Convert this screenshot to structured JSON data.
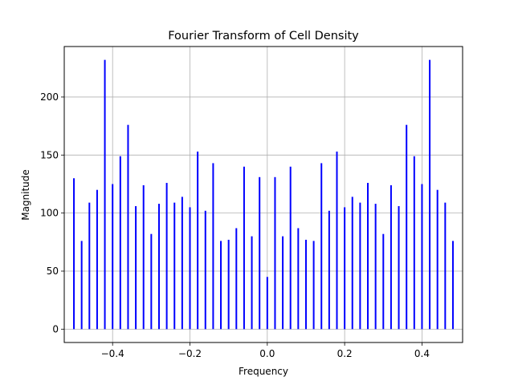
{
  "chart_data": {
    "type": "bar",
    "title": "Fourier Transform of Cell Density",
    "xlabel": "Frequency",
    "ylabel": "Magnitude",
    "xlim": [
      -0.525,
      0.505
    ],
    "ylim": [
      -11.5,
      243.5
    ],
    "x_ticks": [
      -0.4,
      -0.2,
      0.0,
      0.2,
      0.4
    ],
    "x_tick_labels": [
      "−0.4",
      "−0.2",
      "0.0",
      "0.2",
      "0.4"
    ],
    "y_ticks": [
      0,
      50,
      100,
      150,
      200
    ],
    "y_tick_labels": [
      "0",
      "50",
      "100",
      "150",
      "200"
    ],
    "grid": true,
    "bar_color": "#0000ff",
    "x": [
      -0.5,
      -0.48,
      -0.46,
      -0.44,
      -0.42,
      -0.4,
      -0.38,
      -0.36,
      -0.34,
      -0.32,
      -0.3,
      -0.28,
      -0.26,
      -0.24,
      -0.22,
      -0.2,
      -0.18,
      -0.16,
      -0.14,
      -0.12,
      -0.1,
      -0.08,
      -0.06,
      -0.04,
      -0.02,
      0.0,
      0.02,
      0.04,
      0.06,
      0.08,
      0.1,
      0.12,
      0.14,
      0.16,
      0.18,
      0.2,
      0.22,
      0.24,
      0.26,
      0.28,
      0.3,
      0.32,
      0.34,
      0.36,
      0.38,
      0.4,
      0.42,
      0.44,
      0.46,
      0.48
    ],
    "values": [
      130,
      76,
      109,
      120,
      232,
      125,
      149,
      176,
      106,
      124,
      82,
      108,
      126,
      109,
      114,
      105,
      153,
      102,
      143,
      76,
      77,
      87,
      140,
      80,
      131,
      45,
      131,
      80,
      140,
      87,
      77,
      76,
      143,
      102,
      153,
      105,
      114,
      109,
      126,
      108,
      82,
      124,
      106,
      176,
      149,
      125,
      232,
      120,
      109,
      76
    ]
  }
}
